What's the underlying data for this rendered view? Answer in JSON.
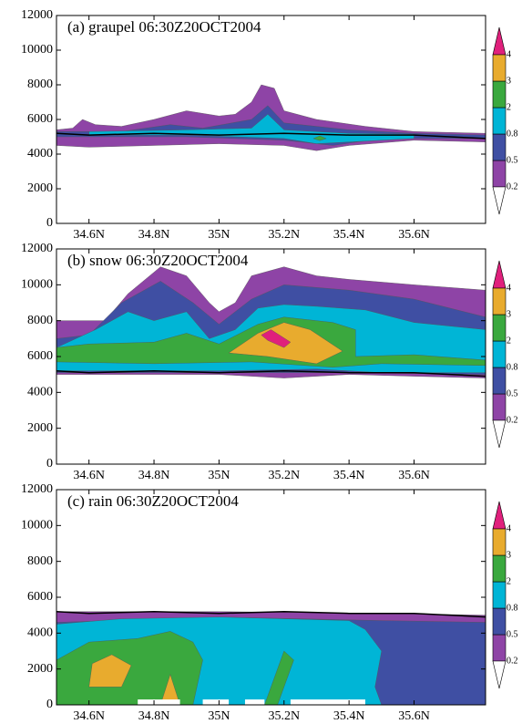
{
  "chart_data": [
    {
      "type": "contour",
      "title": "(a)  graupel 06:30Z20OCT2004",
      "xlim": [
        34.5,
        35.82
      ],
      "xticks": [
        {
          "value": 34.6,
          "label": "34.6N"
        },
        {
          "value": 34.8,
          "label": "34.8N"
        },
        {
          "value": 35.0,
          "label": "35N"
        },
        {
          "value": 35.2,
          "label": "35.2N"
        },
        {
          "value": 35.4,
          "label": "35.4N"
        },
        {
          "value": 35.6,
          "label": "35.6N"
        }
      ],
      "ylim": [
        0,
        12000
      ],
      "yticks": [
        0,
        2000,
        4000,
        6000,
        8000,
        10000,
        12000
      ],
      "levels": [
        0.2,
        0.5,
        0.8,
        2,
        3,
        4
      ],
      "colors": [
        "#ffffff",
        "#8e44a6",
        "#3f4fa3",
        "#00b5d6",
        "#3aa83e",
        "#e8ab2e",
        "#e0207c"
      ]
    },
    {
      "type": "contour",
      "title": "(b)  snow 06:30Z20OCT2004",
      "xlim": [
        34.5,
        35.82
      ],
      "xticks": [
        {
          "value": 34.6,
          "label": "34.6N"
        },
        {
          "value": 34.8,
          "label": "34.8N"
        },
        {
          "value": 35.0,
          "label": "35N"
        },
        {
          "value": 35.2,
          "label": "35.2N"
        },
        {
          "value": 35.4,
          "label": "35.4N"
        },
        {
          "value": 35.6,
          "label": "35.6N"
        }
      ],
      "ylim": [
        0,
        12000
      ],
      "yticks": [
        0,
        2000,
        4000,
        6000,
        8000,
        10000,
        12000
      ],
      "levels": [
        0.2,
        0.5,
        0.8,
        2,
        3,
        4
      ],
      "colors": [
        "#ffffff",
        "#8e44a6",
        "#3f4fa3",
        "#00b5d6",
        "#3aa83e",
        "#e8ab2e",
        "#e0207c"
      ]
    },
    {
      "type": "contour",
      "title": "(c)  rain 06:30Z20OCT2004",
      "xlim": [
        34.5,
        35.82
      ],
      "xticks": [
        {
          "value": 34.6,
          "label": "34.6N"
        },
        {
          "value": 34.8,
          "label": "34.8N"
        },
        {
          "value": 35.0,
          "label": "35N"
        },
        {
          "value": 35.2,
          "label": "35.2N"
        },
        {
          "value": 35.4,
          "label": "35.4N"
        },
        {
          "value": 35.6,
          "label": "35.6N"
        }
      ],
      "ylim": [
        0,
        12000
      ],
      "yticks": [
        0,
        2000,
        4000,
        6000,
        8000,
        10000,
        12000
      ],
      "levels": [
        0.2,
        0.5,
        0.8,
        2,
        3,
        4
      ],
      "colors": [
        "#ffffff",
        "#8e44a6",
        "#3f4fa3",
        "#00b5d6",
        "#3aa83e",
        "#e8ab2e",
        "#e0207c"
      ]
    }
  ]
}
